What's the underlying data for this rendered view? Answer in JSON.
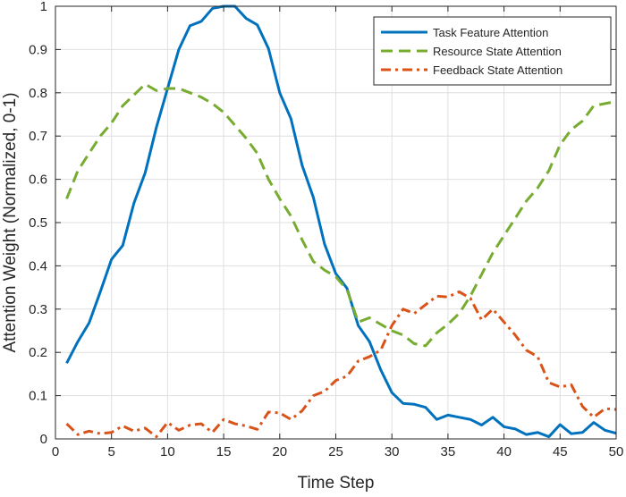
{
  "chart_data": {
    "type": "line",
    "title": "",
    "xlabel": "Time Step",
    "ylabel": "Attention Weight (Normalized, 0-1)",
    "xlim": [
      0,
      50
    ],
    "ylim": [
      0,
      1
    ],
    "xticks": [
      0,
      5,
      10,
      15,
      20,
      25,
      30,
      35,
      40,
      45,
      50
    ],
    "yticks": [
      0,
      0.1,
      0.2,
      0.3,
      0.4,
      0.5,
      0.6,
      0.7,
      0.8,
      0.9,
      1
    ],
    "ytick_labels": [
      "0",
      "0.1",
      "0.2",
      "0.3",
      "0.4",
      "0.5",
      "0.6",
      "0.7",
      "0.8",
      "0.9",
      "1"
    ],
    "grid": true,
    "legend_position": "top-right",
    "x": [
      1,
      2,
      3,
      4,
      5,
      6,
      7,
      8,
      9,
      10,
      11,
      12,
      13,
      14,
      15,
      16,
      17,
      18,
      19,
      20,
      21,
      22,
      23,
      24,
      25,
      26,
      27,
      28,
      29,
      30,
      31,
      32,
      33,
      34,
      35,
      36,
      37,
      38,
      39,
      40,
      41,
      42,
      43,
      44,
      45,
      46,
      47,
      48,
      49,
      50
    ],
    "series": [
      {
        "name": "Task Feature Attention",
        "color": "#0072BD",
        "style": "solid",
        "values": [
          0.175,
          0.225,
          0.268,
          0.34,
          0.415,
          0.447,
          0.545,
          0.615,
          0.72,
          0.81,
          0.9,
          0.955,
          0.965,
          0.995,
          1.0,
          1.0,
          0.972,
          0.957,
          0.902,
          0.8,
          0.74,
          0.632,
          0.558,
          0.45,
          0.382,
          0.348,
          0.262,
          0.225,
          0.16,
          0.107,
          0.082,
          0.08,
          0.073,
          0.045,
          0.055,
          0.05,
          0.045,
          0.032,
          0.05,
          0.028,
          0.023,
          0.01,
          0.015,
          0.005,
          0.033,
          0.012,
          0.015,
          0.038,
          0.02,
          0.013
        ]
      },
      {
        "name": "Resource State Attention",
        "color": "#77AC30",
        "style": "dashed",
        "values": [
          0.555,
          0.62,
          0.66,
          0.7,
          0.73,
          0.77,
          0.795,
          0.82,
          0.805,
          0.81,
          0.81,
          0.8,
          0.79,
          0.775,
          0.755,
          0.725,
          0.695,
          0.66,
          0.6,
          0.555,
          0.515,
          0.46,
          0.41,
          0.39,
          0.375,
          0.345,
          0.27,
          0.28,
          0.265,
          0.25,
          0.24,
          0.22,
          0.215,
          0.245,
          0.265,
          0.29,
          0.33,
          0.38,
          0.43,
          0.47,
          0.51,
          0.55,
          0.58,
          0.62,
          0.68,
          0.715,
          0.735,
          0.77,
          0.775,
          0.78
        ]
      },
      {
        "name": "Feedback State Attention",
        "color": "#D95319",
        "style": "dashdot",
        "values": [
          0.035,
          0.01,
          0.018,
          0.012,
          0.015,
          0.03,
          0.018,
          0.025,
          0.005,
          0.038,
          0.02,
          0.032,
          0.035,
          0.015,
          0.045,
          0.035,
          0.03,
          0.022,
          0.062,
          0.06,
          0.045,
          0.065,
          0.1,
          0.11,
          0.135,
          0.145,
          0.18,
          0.19,
          0.205,
          0.262,
          0.3,
          0.29,
          0.31,
          0.33,
          0.328,
          0.34,
          0.325,
          0.275,
          0.3,
          0.27,
          0.24,
          0.205,
          0.19,
          0.13,
          0.12,
          0.125,
          0.075,
          0.05,
          0.07,
          0.068
        ]
      }
    ]
  }
}
